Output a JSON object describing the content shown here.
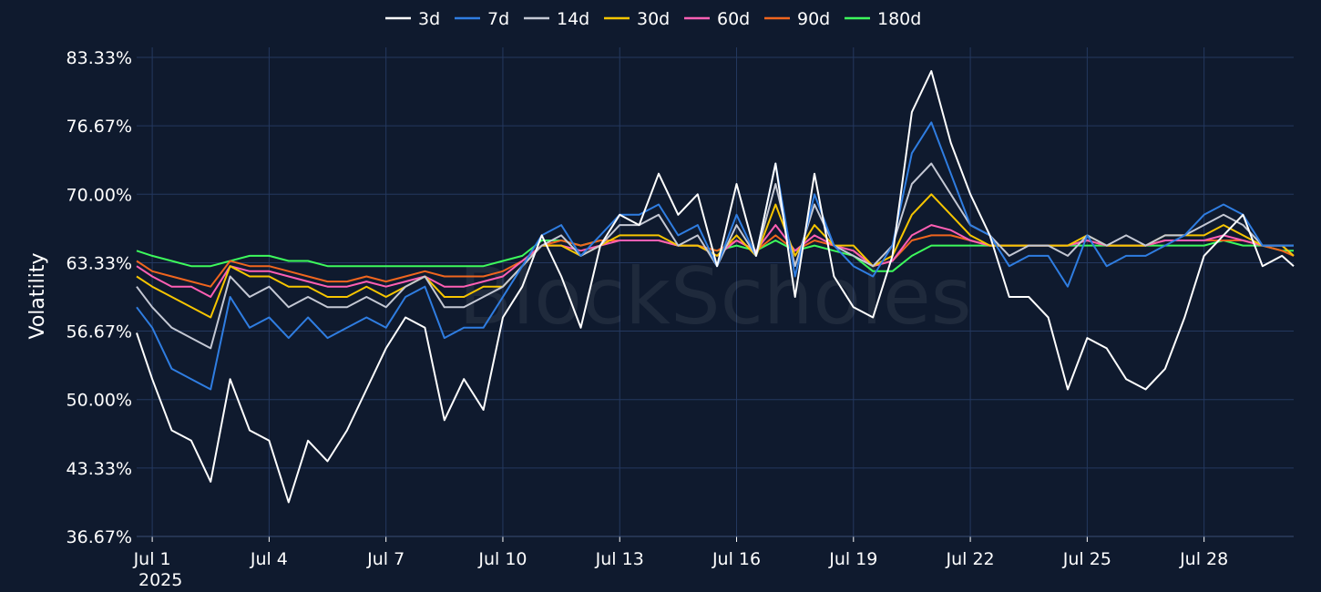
{
  "chart_data": {
    "type": "line",
    "watermark": "BlockScholes",
    "ylabel": "Volatility",
    "xlabel": "",
    "ylim": [
      36.67,
      83.33
    ],
    "y_ticks": [
      "83.33%",
      "76.67%",
      "70.00%",
      "63.33%",
      "56.67%",
      "50.00%",
      "43.33%",
      "36.67%"
    ],
    "y_tick_values": [
      83.33,
      76.67,
      70.0,
      63.33,
      56.67,
      50.0,
      43.33,
      36.67
    ],
    "x_ticks": [
      "Jul 1",
      "Jul 4",
      "Jul 7",
      "Jul 10",
      "Jul 13",
      "Jul 16",
      "Jul 19",
      "Jul 22",
      "Jul 25",
      "Jul 28"
    ],
    "x_tick_days": [
      1,
      4,
      7,
      10,
      13,
      16,
      19,
      22,
      25,
      28
    ],
    "x_sublabel": "2025",
    "xlim_days": [
      0.6,
      30.3
    ],
    "grid": true,
    "legend_position": "top-center",
    "x": [
      0.6,
      1.0,
      1.5,
      2.0,
      2.5,
      3.0,
      3.5,
      4.0,
      4.5,
      5.0,
      5.5,
      6.0,
      6.5,
      7.0,
      7.5,
      8.0,
      8.5,
      9.0,
      9.5,
      10.0,
      10.5,
      11.0,
      11.5,
      12.0,
      12.5,
      13.0,
      13.5,
      14.0,
      14.5,
      15.0,
      15.5,
      16.0,
      16.5,
      17.0,
      17.5,
      18.0,
      18.5,
      19.0,
      19.5,
      20.0,
      20.5,
      21.0,
      21.5,
      22.0,
      22.5,
      23.0,
      23.5,
      24.0,
      24.5,
      25.0,
      25.5,
      26.0,
      26.5,
      27.0,
      27.5,
      28.0,
      28.5,
      29.0,
      29.5,
      30.0,
      30.3
    ],
    "series": [
      {
        "name": "3d",
        "color": "#ffffff",
        "values": [
          56.5,
          52,
          47,
          46,
          42,
          52,
          47,
          46,
          40,
          46,
          44,
          47,
          51,
          55,
          58,
          57,
          48,
          52,
          49,
          58,
          61,
          66,
          62,
          57,
          65,
          68,
          67,
          72,
          68,
          70,
          63,
          71,
          64,
          73,
          60,
          72,
          62,
          59,
          58,
          64,
          78,
          82,
          75,
          70,
          66,
          60,
          60,
          58,
          51,
          56,
          55,
          52,
          51,
          53,
          58,
          64,
          66,
          68,
          63,
          64,
          63
        ]
      },
      {
        "name": "7d",
        "color": "#2f7de1",
        "values": [
          59,
          57,
          53,
          52,
          51,
          60,
          57,
          58,
          56,
          58,
          56,
          57,
          58,
          57,
          60,
          61,
          56,
          57,
          57,
          60,
          63,
          66,
          67,
          64,
          66,
          68,
          68,
          69,
          66,
          67,
          63,
          68,
          64,
          73,
          62,
          70,
          65,
          63,
          62,
          65,
          74,
          77,
          72,
          67,
          66,
          63,
          64,
          64,
          61,
          66,
          63,
          64,
          64,
          65,
          66,
          68,
          69,
          68,
          65,
          65,
          65
        ]
      },
      {
        "name": "14d",
        "color": "#c4c8d4",
        "values": [
          61,
          59,
          57,
          56,
          55,
          62,
          60,
          61,
          59,
          60,
          59,
          59,
          60,
          59,
          61,
          62,
          59,
          59,
          60,
          61,
          63,
          65,
          66,
          64,
          65,
          67,
          67,
          68,
          65,
          66,
          63,
          67,
          64,
          71,
          63,
          69,
          65,
          64,
          63,
          65,
          71,
          73,
          70,
          67,
          66,
          64,
          65,
          65,
          64,
          66,
          65,
          66,
          65,
          66,
          66,
          67,
          68,
          67,
          65,
          65,
          65
        ]
      },
      {
        "name": "30d",
        "color": "#f6c500",
        "values": [
          62,
          61,
          60,
          59,
          58,
          63,
          62,
          62,
          61,
          61,
          60,
          60,
          61,
          60,
          61,
          62,
          60,
          60,
          61,
          61,
          63,
          65,
          65,
          64,
          65,
          66,
          66,
          66,
          65,
          65,
          64,
          66,
          64,
          69,
          64,
          67,
          65,
          65,
          63,
          64,
          68,
          70,
          68,
          66,
          65,
          65,
          65,
          65,
          65,
          66,
          65,
          65,
          65,
          66,
          66,
          66,
          67,
          66,
          65,
          65,
          64
        ]
      },
      {
        "name": "60d",
        "color": "#ff5fb4",
        "values": [
          63,
          62,
          61,
          61,
          60,
          63,
          62.5,
          62.5,
          62,
          61.5,
          61,
          61,
          61.5,
          61,
          61.5,
          62,
          61,
          61,
          61.5,
          62,
          63.5,
          65,
          65,
          64.5,
          65,
          65.5,
          65.5,
          65.5,
          65,
          65,
          64,
          65.5,
          64.5,
          67,
          64.5,
          66,
          65,
          64.5,
          63,
          63.5,
          66,
          67,
          66.5,
          65.5,
          65,
          65,
          65,
          65,
          65,
          65.5,
          65,
          65,
          65,
          65.5,
          65.5,
          65.5,
          66,
          65.5,
          65,
          65,
          64
        ]
      },
      {
        "name": "90d",
        "color": "#f0651e",
        "values": [
          63.5,
          62.5,
          62,
          61.5,
          61,
          63.5,
          63,
          63,
          62.5,
          62,
          61.5,
          61.5,
          62,
          61.5,
          62,
          62.5,
          62,
          62,
          62,
          62.5,
          63.5,
          65,
          65.5,
          65,
          65.5,
          65.5,
          65.5,
          65.5,
          65,
          65,
          64.5,
          65.5,
          64.5,
          66,
          64.5,
          65.5,
          65,
          64.5,
          63,
          63.5,
          65.5,
          66,
          66,
          65.5,
          65,
          65,
          65,
          65,
          65,
          65.5,
          65,
          65,
          65,
          65.5,
          65.5,
          65.5,
          65.5,
          65.5,
          65,
          64.5,
          64
        ]
      },
      {
        "name": "180d",
        "color": "#3dfa5c",
        "values": [
          64.5,
          64,
          63.5,
          63,
          63,
          63.5,
          64,
          64,
          63.5,
          63.5,
          63,
          63,
          63,
          63,
          63,
          63,
          63,
          63,
          63,
          63.5,
          64,
          65.5,
          65.5,
          65,
          65.5,
          65.5,
          65.5,
          65.5,
          65,
          65,
          64.5,
          65,
          64.5,
          65.5,
          64.5,
          65,
          64.5,
          64,
          62.5,
          62.5,
          64,
          65,
          65,
          65,
          65,
          65,
          65,
          65,
          65,
          65,
          65,
          65,
          65,
          65,
          65,
          65,
          65.5,
          65,
          65,
          64.5,
          64.5
        ]
      }
    ]
  }
}
